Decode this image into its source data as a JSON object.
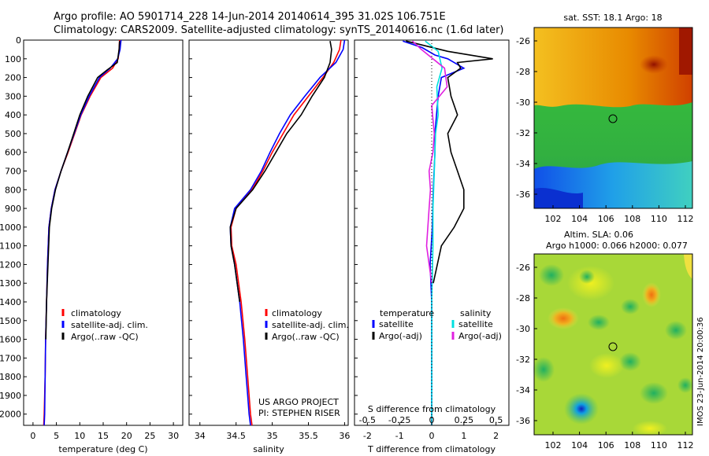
{
  "header": {
    "line1": "Argo profile: AO 5901714_228 14-Jun-2014 20140614_395 31.02S 106.751E",
    "line2": "Climatology: CARS2009. Satellite-adjusted climatology: synTS_20140616.nc (1.6d later)"
  },
  "colors": {
    "clim": "#ff0000",
    "sat": "#0000ff",
    "argo": "#000000",
    "sat_sal": "#00e0e0",
    "argo_sal": "#e020e0"
  },
  "depth_axis": {
    "ticks": [
      0,
      100,
      200,
      300,
      400,
      500,
      600,
      700,
      800,
      900,
      1000,
      1100,
      1200,
      1300,
      1400,
      1500,
      1600,
      1700,
      1800,
      1900,
      2000
    ],
    "range": [
      0,
      2060
    ]
  },
  "panels": {
    "temperature": {
      "xlabel": "temperature (deg C)",
      "xticks": [
        0,
        5,
        10,
        15,
        20,
        25,
        30
      ],
      "legend": [
        "climatology",
        "satellite-adj. clim.",
        "Argo(..raw -QC)"
      ]
    },
    "salinity": {
      "xlabel": "salinity",
      "xticks": [
        "34",
        "34.5",
        "35",
        "35.5",
        "36"
      ],
      "legend": [
        "climatology",
        "satellite-adj. clim.",
        "Argo(..raw -QC)"
      ],
      "note1": "US ARGO PROJECT",
      "note2": "PI: STEPHEN RISER"
    },
    "difference": {
      "xlabel": "T difference from climatology",
      "top_label": "S difference from climatology",
      "xticks": [
        "-2",
        "-1",
        "0",
        "1",
        "2"
      ],
      "sticks": [
        "-0.5",
        "-0.25",
        "0",
        "0.25",
        "0.5"
      ],
      "legend_head_t": "temperature",
      "legend_head_s": "salinity",
      "legend_t": [
        "satellite",
        "Argo(-adj)"
      ],
      "legend_s": [
        "satellite",
        "Argo(-adj)"
      ]
    }
  },
  "maps": {
    "sst_title": "sat. SST: 18.1  Argo: 18",
    "sla_title1": "Altim. SLA: 0.06",
    "sla_title2": "Argo h1000: 0.066 h2000: 0.077",
    "lat_ticks": [
      "-26",
      "-28",
      "-30",
      "-32",
      "-34",
      "-36"
    ],
    "lon_ticks": [
      "102",
      "104",
      "106",
      "108",
      "110",
      "112"
    ],
    "credit": "IMOS 23-Jun-2014 20:00:36"
  },
  "chart_data": [
    {
      "type": "line",
      "title": "",
      "xlabel": "temperature (deg C)",
      "ylabel": "",
      "xlim": [
        -2,
        32
      ],
      "ylim": [
        2060,
        0
      ],
      "series": [
        {
          "name": "climatology",
          "x": [
            18.5,
            18.4,
            18.2,
            17.0,
            14.5,
            12.2,
            10.3,
            8.9,
            7.5,
            6.0,
            4.7,
            3.9,
            3.4,
            3.1,
            2.9,
            2.7,
            2.6,
            2.5,
            2.4,
            2.35,
            2.3
          ],
          "y": [
            0,
            50,
            100,
            150,
            200,
            300,
            400,
            500,
            600,
            700,
            800,
            900,
            1000,
            1200,
            1400,
            1600,
            1800,
            1900,
            2000,
            2030,
            2060
          ]
        },
        {
          "name": "satellite-adj. clim.",
          "x": [
            18.8,
            18.6,
            18.1,
            16.5,
            14.2,
            12.0,
            10.2,
            8.8,
            7.4,
            6.0,
            4.7,
            3.9,
            3.4,
            3.1,
            2.9,
            2.7,
            2.6,
            2.55,
            2.5,
            2.45,
            2.4
          ],
          "y": [
            0,
            50,
            100,
            150,
            200,
            300,
            400,
            500,
            600,
            700,
            800,
            900,
            1000,
            1200,
            1400,
            1600,
            1800,
            1900,
            2000,
            2030,
            2060
          ]
        },
        {
          "name": "Argo(..raw -QC)",
          "x": [
            18.5,
            18.4,
            18.0,
            15.8,
            13.8,
            11.7,
            10.0,
            8.7,
            7.4,
            6.0,
            4.8,
            4.0,
            3.5,
            3.2,
            2.9,
            2.75
          ],
          "y": [
            5,
            50,
            120,
            160,
            200,
            300,
            400,
            500,
            600,
            700,
            800,
            900,
            1000,
            1200,
            1400,
            1600
          ]
        }
      ]
    },
    {
      "type": "line",
      "title": "",
      "xlabel": "salinity",
      "ylabel": "",
      "xlim": [
        33.85,
        36.05
      ],
      "ylim": [
        2060,
        0
      ],
      "series": [
        {
          "name": "climatology",
          "x": [
            35.95,
            35.93,
            35.85,
            35.7,
            35.5,
            35.3,
            35.15,
            35.0,
            34.87,
            34.72,
            34.5,
            34.43,
            34.44,
            34.5,
            34.57,
            34.62,
            34.66,
            34.68,
            34.7,
            34.72
          ],
          "y": [
            0,
            50,
            120,
            200,
            300,
            400,
            500,
            600,
            700,
            800,
            900,
            1000,
            1100,
            1200,
            1400,
            1600,
            1800,
            1900,
            2000,
            2060
          ]
        },
        {
          "name": "satellite-adj. clim.",
          "x": [
            36.0,
            35.98,
            35.88,
            35.66,
            35.45,
            35.25,
            35.1,
            34.97,
            34.85,
            34.7,
            34.48,
            34.42,
            34.43,
            34.48,
            34.55,
            34.6,
            34.64,
            34.66,
            34.68,
            34.7
          ],
          "y": [
            0,
            50,
            120,
            200,
            300,
            400,
            500,
            600,
            700,
            800,
            900,
            1000,
            1100,
            1200,
            1400,
            1600,
            1800,
            1900,
            2000,
            2060
          ]
        },
        {
          "name": "Argo(..raw -QC)",
          "x": [
            35.8,
            35.82,
            35.8,
            35.72,
            35.55,
            35.4,
            35.2,
            35.05,
            34.9,
            34.73,
            34.5,
            34.42,
            34.43,
            34.48,
            34.55
          ],
          "y": [
            5,
            50,
            120,
            200,
            300,
            400,
            500,
            600,
            700,
            800,
            900,
            1000,
            1100,
            1200,
            1400
          ]
        }
      ]
    },
    {
      "type": "line",
      "title": "",
      "xlabel": "T difference from climatology",
      "ylabel": "",
      "xlim": [
        -2.4,
        2.4
      ],
      "ylim": [
        2060,
        0
      ],
      "series": [
        {
          "name": "satellite",
          "x": [
            -0.9,
            -0.3,
            0.1,
            0.5,
            1.0,
            0.3,
            0.2,
            0.15,
            0.1,
            0.1,
            0.05,
            0.02,
            -0.05,
            0.0,
            0.0,
            0.0,
            0.0
          ],
          "y": [
            5,
            40,
            80,
            100,
            150,
            200,
            300,
            400,
            500,
            600,
            800,
            1000,
            1200,
            1400,
            1600,
            1800,
            2060
          ]
        },
        {
          "name": "Argo(-adj)",
          "x": [
            -0.8,
            0.5,
            1.9,
            0.8,
            0.9,
            0.5,
            0.6,
            0.8,
            0.5,
            0.6,
            0.8,
            1.0,
            1.0,
            0.7,
            0.3,
            0.05
          ],
          "y": [
            5,
            60,
            100,
            120,
            150,
            200,
            300,
            400,
            500,
            600,
            700,
            800,
            900,
            1000,
            1100,
            1300
          ]
        }
      ]
    },
    {
      "type": "line",
      "title": "",
      "xlabel": "S difference from climatology",
      "ylabel": "",
      "xlim": [
        -0.6,
        0.6
      ],
      "ylim": [
        2060,
        0
      ],
      "series": [
        {
          "name": "satellite",
          "x": [
            -0.05,
            0.05,
            0.08,
            0.04,
            0.05,
            0.03,
            0.02,
            0.01,
            0.01,
            0.0,
            0.0,
            0.0
          ],
          "y": [
            5,
            60,
            150,
            250,
            400,
            500,
            700,
            900,
            1100,
            1400,
            1700,
            2060
          ]
        },
        {
          "name": "Argo(-adj)",
          "x": [
            -0.15,
            -0.08,
            0.1,
            0.12,
            0.0,
            0.02,
            0.01,
            -0.02,
            -0.01,
            -0.02,
            -0.03,
            -0.04,
            0.0
          ],
          "y": [
            5,
            50,
            150,
            250,
            350,
            500,
            600,
            700,
            800,
            900,
            1000,
            1100,
            1300
          ]
        }
      ]
    }
  ]
}
